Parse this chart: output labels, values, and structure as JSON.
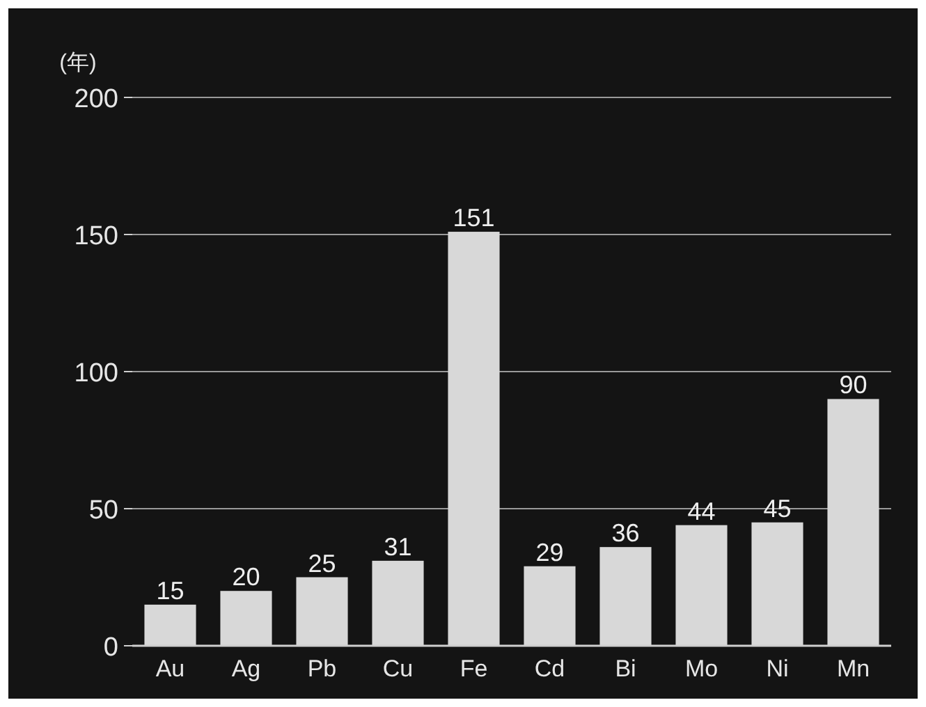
{
  "chart_data": {
    "type": "bar",
    "ylabel": "(年)",
    "categories": [
      "Au",
      "Ag",
      "Pb",
      "Cu",
      "Fe",
      "Cd",
      "Bi",
      "Mo",
      "Ni",
      "Mn"
    ],
    "values": [
      15,
      20,
      25,
      31,
      151,
      29,
      36,
      44,
      45,
      90
    ],
    "color": "#d8d8d8",
    "ylim": [
      0,
      200
    ],
    "yticks": [
      0,
      50,
      100,
      150,
      200
    ],
    "grid": "y",
    "data_labels": true
  }
}
